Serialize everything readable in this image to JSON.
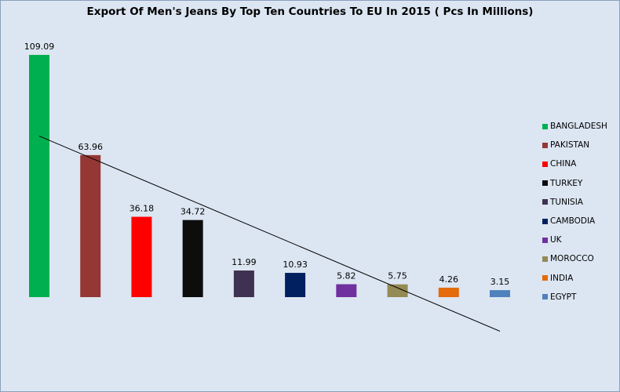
{
  "chart_data": {
    "type": "bar",
    "title": "Export  Of Men's Jeans By Top Ten Countries To EU In 2015 ( Pcs In Millions)",
    "xlabel": "",
    "ylabel": "",
    "categories": [
      "BANGLADESH",
      "PAKISTAN",
      "CHINA",
      "TURKEY",
      "TUNISIA",
      "CAMBODIA",
      "UK",
      "MOROCCO",
      "INDIA",
      "EGYPT"
    ],
    "values": [
      109.09,
      63.96,
      36.18,
      34.72,
      11.99,
      10.93,
      5.82,
      5.75,
      4.26,
      3.15
    ],
    "value_labels": [
      "109.09",
      "63.96",
      "36.18",
      "34.72",
      "11.99",
      "10.93",
      "5.82",
      "5.75",
      "4.26",
      "3.15"
    ],
    "colors": [
      "#00b050",
      "#953735",
      "#ff0000",
      "#0d0d0d",
      "#3f3151",
      "#002060",
      "#7030a0",
      "#948a54",
      "#e46c0a",
      "#4f81bd"
    ],
    "ylim": [
      0,
      109.09
    ],
    "grid": false,
    "legend_position": "right",
    "trendline": "linear",
    "trendline_color": "#000000"
  }
}
